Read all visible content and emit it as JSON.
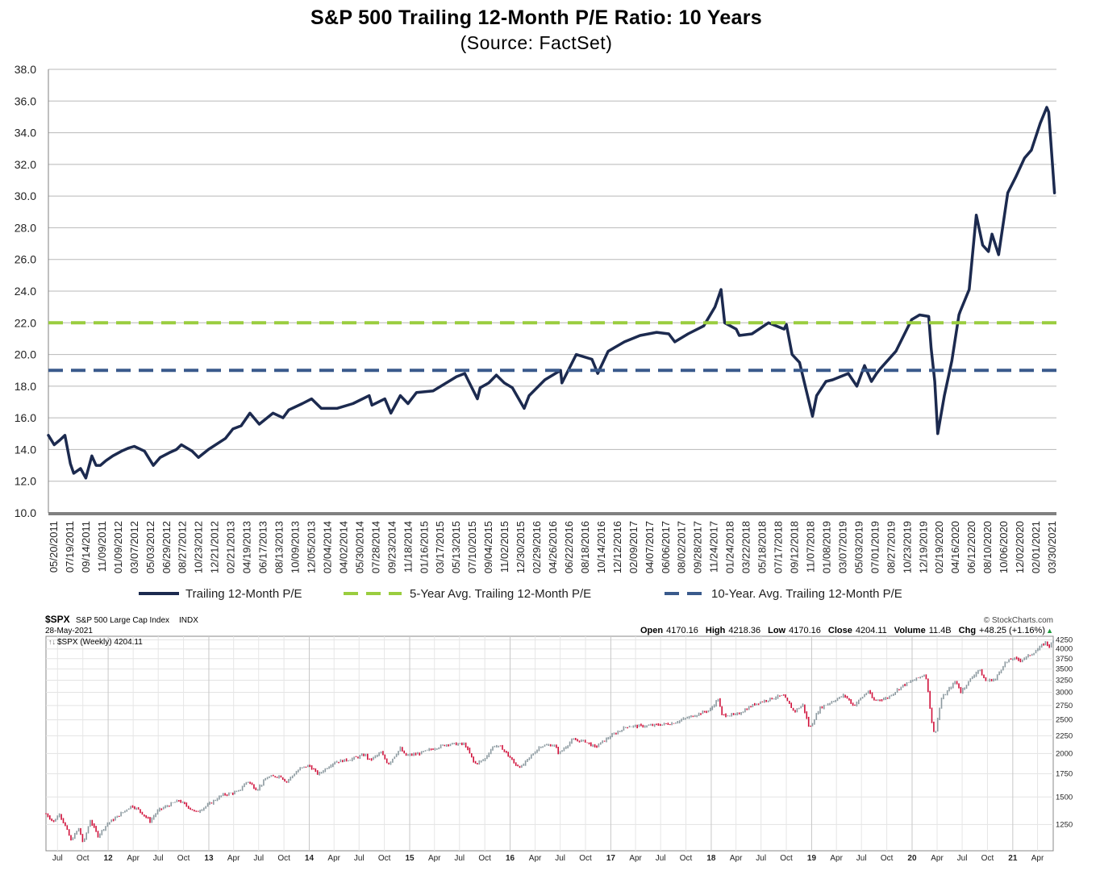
{
  "chart_data": [
    {
      "type": "line",
      "title": "S&P 500 Trailing 12-Month P/E Ratio: 10 Years",
      "subtitle": "(Source: FactSet)",
      "ylim": [
        10,
        38
      ],
      "y_ticks": [
        "10.0",
        "12.0",
        "14.0",
        "16.0",
        "18.0",
        "20.0",
        "22.0",
        "24.0",
        "26.0",
        "28.0",
        "30.0",
        "32.0",
        "34.0",
        "36.0",
        "38.0"
      ],
      "x_ticks": [
        "05/20/2011",
        "07/19/2011",
        "09/14/2011",
        "11/09/2011",
        "01/09/2012",
        "03/07/2012",
        "05/03/2012",
        "06/29/2012",
        "08/27/2012",
        "10/23/2012",
        "12/21/2012",
        "02/21/2013",
        "04/19/2013",
        "06/17/2013",
        "08/13/2013",
        "10/09/2013",
        "12/05/2013",
        "02/04/2014",
        "04/02/2014",
        "05/30/2014",
        "07/28/2014",
        "09/23/2014",
        "11/18/2014",
        "01/16/2015",
        "03/17/2015",
        "05/13/2015",
        "07/10/2015",
        "09/04/2015",
        "11/02/2015",
        "12/30/2015",
        "02/29/2016",
        "04/26/2016",
        "06/22/2016",
        "08/18/2016",
        "10/14/2016",
        "12/12/2016",
        "02/09/2017",
        "04/07/2017",
        "06/06/2017",
        "08/02/2017",
        "09/28/2017",
        "11/24/2017",
        "01/24/2018",
        "03/22/2018",
        "05/18/2018",
        "07/17/2018",
        "09/12/2018",
        "11/07/2018",
        "01/08/2019",
        "03/07/2019",
        "05/03/2019",
        "07/01/2019",
        "08/27/2019",
        "10/23/2019",
        "12/19/2019",
        "02/19/2020",
        "04/16/2020",
        "06/12/2020",
        "08/10/2020",
        "10/06/2020",
        "12/02/2020",
        "02/01/2021",
        "03/30/2021"
      ],
      "x_start": "05/20/2011",
      "x_end": "05/28/2021",
      "series": [
        {
          "name": "Trailing 12-Month P/E",
          "color": "#1c2a4f",
          "dates": [
            "05/20/2011",
            "06/10/2011",
            "07/01/2011",
            "07/19/2011",
            "08/08/2011",
            "08/20/2011",
            "09/14/2011",
            "10/03/2011",
            "10/25/2011",
            "11/09/2011",
            "11/25/2011",
            "12/15/2011",
            "01/09/2012",
            "02/10/2012",
            "03/07/2012",
            "03/27/2012",
            "05/03/2012",
            "06/04/2012",
            "06/29/2012",
            "08/01/2012",
            "08/27/2012",
            "09/14/2012",
            "10/23/2012",
            "11/15/2012",
            "12/21/2012",
            "02/21/2013",
            "03/20/2013",
            "04/19/2013",
            "05/21/2013",
            "06/24/2013",
            "08/13/2013",
            "09/18/2013",
            "10/09/2013",
            "11/27/2013",
            "12/31/2013",
            "02/04/2014",
            "04/02/2014",
            "05/30/2014",
            "07/28/2014",
            "08/07/2014",
            "09/23/2014",
            "10/15/2014",
            "11/18/2014",
            "12/16/2014",
            "01/16/2015",
            "03/17/2015",
            "05/13/2015",
            "06/10/2015",
            "07/10/2015",
            "08/25/2015",
            "09/04/2015",
            "10/05/2015",
            "11/02/2015",
            "12/01/2015",
            "12/30/2015",
            "02/11/2016",
            "02/29/2016",
            "04/26/2016",
            "06/22/2016",
            "06/27/2016",
            "08/18/2016",
            "10/14/2016",
            "11/04/2016",
            "12/12/2016",
            "02/09/2017",
            "04/07/2017",
            "06/06/2017",
            "07/20/2017",
            "08/11/2017",
            "09/28/2017",
            "11/24/2017",
            "01/04/2018",
            "01/26/2018",
            "02/08/2018",
            "03/22/2018",
            "04/02/2018",
            "05/18/2018",
            "07/17/2018",
            "09/12/2018",
            "09/20/2018",
            "10/11/2018",
            "11/07/2018",
            "12/24/2018",
            "01/08/2019",
            "02/11/2019",
            "03/07/2019",
            "05/03/2019",
            "06/03/2019",
            "07/01/2019",
            "07/26/2019",
            "08/14/2019",
            "08/27/2019",
            "10/23/2019",
            "12/19/2019",
            "01/17/2020",
            "02/19/2020",
            "02/28/2020",
            "03/12/2020",
            "03/23/2020",
            "04/16/2020",
            "05/13/2020",
            "06/08/2020",
            "06/12/2020",
            "07/15/2020",
            "08/10/2020",
            "09/02/2020",
            "09/23/2020",
            "10/06/2020",
            "10/30/2020",
            "12/02/2020",
            "12/31/2020",
            "02/01/2021",
            "02/26/2021",
            "03/30/2021",
            "04/23/2021",
            "04/30/2021",
            "05/21/2021"
          ],
          "values": [
            14.9,
            14.3,
            14.6,
            14.9,
            13.1,
            12.5,
            12.8,
            12.2,
            13.6,
            13.0,
            13.0,
            13.3,
            13.6,
            13.9,
            14.1,
            14.2,
            13.9,
            13.0,
            13.5,
            13.8,
            14.0,
            14.3,
            13.9,
            13.5,
            14.0,
            14.7,
            15.3,
            15.5,
            16.3,
            15.6,
            16.3,
            16.0,
            16.5,
            16.9,
            17.2,
            16.6,
            16.6,
            16.9,
            17.4,
            16.8,
            17.2,
            16.3,
            17.4,
            16.9,
            17.6,
            17.7,
            18.3,
            18.6,
            18.8,
            17.2,
            17.9,
            18.2,
            18.7,
            18.2,
            17.9,
            16.6,
            17.4,
            18.4,
            19.0,
            18.2,
            20.0,
            19.7,
            18.8,
            20.2,
            20.8,
            21.2,
            21.4,
            21.3,
            20.8,
            21.3,
            21.8,
            23.0,
            24.1,
            22.0,
            21.6,
            21.2,
            21.3,
            22.0,
            21.6,
            21.9,
            20.0,
            19.5,
            16.1,
            17.4,
            18.3,
            18.4,
            18.8,
            18.0,
            19.3,
            18.3,
            18.8,
            19.1,
            20.2,
            22.2,
            22.5,
            22.4,
            20.4,
            18.3,
            15.0,
            17.4,
            19.6,
            22.5,
            22.7,
            24.1,
            28.8,
            26.9,
            26.5,
            27.6,
            26.3,
            30.2,
            31.2,
            32.4,
            32.9,
            34.6,
            35.6,
            35.3,
            30.2
          ],
          "stroke": "solid"
        },
        {
          "name": "5-Year Avg. Trailing 12-Month P/E",
          "color": "#9acd3f",
          "value": 22.0,
          "stroke": "dashed"
        },
        {
          "name": "10-Year. Avg. Trailing 12-Month P/E",
          "color": "#3a5a8c",
          "value": 19.0,
          "stroke": "dashed"
        }
      ],
      "grid": true,
      "legend": "bottom"
    },
    {
      "type": "line",
      "symbol": "$SPX",
      "name": "S&P 500 Large Cap Index",
      "exchange": "INDX",
      "date": "28-May-2021",
      "watermark": "© StockCharts.com",
      "stats": [
        {
          "label": "Open",
          "value": "4170.16"
        },
        {
          "label": "High",
          "value": "4218.36"
        },
        {
          "label": "Low",
          "value": "4170.16"
        },
        {
          "label": "Close",
          "value": "4204.11"
        },
        {
          "label": "Volume",
          "value": "11.4B"
        },
        {
          "label": "Chg",
          "value": "+48.25 (+1.16%)"
        }
      ],
      "chg_arrow": "▲",
      "series_label": "$SPX (Weekly) 4204.11",
      "series_label_icon": "↑↓",
      "scale": "log",
      "ylim": [
        1050,
        4350
      ],
      "y_ticks": [
        1250,
        1500,
        1750,
        2000,
        2250,
        2500,
        2750,
        3000,
        3250,
        3500,
        3750,
        4000,
        4250
      ],
      "x_ticks": [
        {
          "label": "Jul",
          "date": "2011-07-01",
          "bold": false
        },
        {
          "label": "Oct",
          "date": "2011-10-01",
          "bold": false
        },
        {
          "label": "12",
          "date": "2012-01-01",
          "bold": true
        },
        {
          "label": "Apr",
          "date": "2012-04-01",
          "bold": false
        },
        {
          "label": "Jul",
          "date": "2012-07-01",
          "bold": false
        },
        {
          "label": "Oct",
          "date": "2012-10-01",
          "bold": false
        },
        {
          "label": "13",
          "date": "2013-01-01",
          "bold": true
        },
        {
          "label": "Apr",
          "date": "2013-04-01",
          "bold": false
        },
        {
          "label": "Jul",
          "date": "2013-07-01",
          "bold": false
        },
        {
          "label": "Oct",
          "date": "2013-10-01",
          "bold": false
        },
        {
          "label": "14",
          "date": "2014-01-01",
          "bold": true
        },
        {
          "label": "Apr",
          "date": "2014-04-01",
          "bold": false
        },
        {
          "label": "Jul",
          "date": "2014-07-01",
          "bold": false
        },
        {
          "label": "Oct",
          "date": "2014-10-01",
          "bold": false
        },
        {
          "label": "15",
          "date": "2015-01-01",
          "bold": true
        },
        {
          "label": "Apr",
          "date": "2015-04-01",
          "bold": false
        },
        {
          "label": "Jul",
          "date": "2015-07-01",
          "bold": false
        },
        {
          "label": "Oct",
          "date": "2015-10-01",
          "bold": false
        },
        {
          "label": "16",
          "date": "2016-01-01",
          "bold": true
        },
        {
          "label": "Apr",
          "date": "2016-04-01",
          "bold": false
        },
        {
          "label": "Jul",
          "date": "2016-07-01",
          "bold": false
        },
        {
          "label": "Oct",
          "date": "2016-10-01",
          "bold": false
        },
        {
          "label": "17",
          "date": "2017-01-01",
          "bold": true
        },
        {
          "label": "Apr",
          "date": "2017-04-01",
          "bold": false
        },
        {
          "label": "Jul",
          "date": "2017-07-01",
          "bold": false
        },
        {
          "label": "Oct",
          "date": "2017-10-01",
          "bold": false
        },
        {
          "label": "18",
          "date": "2018-01-01",
          "bold": true
        },
        {
          "label": "Apr",
          "date": "2018-04-01",
          "bold": false
        },
        {
          "label": "Jul",
          "date": "2018-07-01",
          "bold": false
        },
        {
          "label": "Oct",
          "date": "2018-10-01",
          "bold": false
        },
        {
          "label": "19",
          "date": "2019-01-01",
          "bold": true
        },
        {
          "label": "Apr",
          "date": "2019-04-01",
          "bold": false
        },
        {
          "label": "Jul",
          "date": "2019-07-01",
          "bold": false
        },
        {
          "label": "Oct",
          "date": "2019-10-01",
          "bold": false
        },
        {
          "label": "20",
          "date": "2020-01-01",
          "bold": true
        },
        {
          "label": "Apr",
          "date": "2020-04-01",
          "bold": false
        },
        {
          "label": "Jul",
          "date": "2020-07-01",
          "bold": false
        },
        {
          "label": "Oct",
          "date": "2020-10-01",
          "bold": false
        },
        {
          "label": "21",
          "date": "2021-01-01",
          "bold": true
        },
        {
          "label": "Apr",
          "date": "2021-04-01",
          "bold": false
        }
      ],
      "x_start": "2011-05-20",
      "x_end": "2021-05-28",
      "up_color": "#8c9aa0",
      "down_color": "#d0103a",
      "dates": [
        "2011-05-20",
        "2011-06-17",
        "2011-07-08",
        "2011-08-05",
        "2011-08-19",
        "2011-09-16",
        "2011-10-03",
        "2011-10-28",
        "2011-11-25",
        "2011-12-30",
        "2012-02-01",
        "2012-03-26",
        "2012-04-20",
        "2012-06-01",
        "2012-07-02",
        "2012-09-14",
        "2012-11-15",
        "2012-12-31",
        "2013-02-19",
        "2013-04-18",
        "2013-05-21",
        "2013-06-24",
        "2013-08-02",
        "2013-09-18",
        "2013-10-09",
        "2013-11-27",
        "2013-12-31",
        "2014-02-03",
        "2014-04-02",
        "2014-05-30",
        "2014-07-24",
        "2014-08-07",
        "2014-09-19",
        "2014-10-15",
        "2014-11-28",
        "2014-12-16",
        "2015-01-30",
        "2015-03-10",
        "2015-05-20",
        "2015-07-20",
        "2015-08-25",
        "2015-09-29",
        "2015-11-03",
        "2015-12-01",
        "2016-01-20",
        "2016-02-11",
        "2016-04-20",
        "2016-06-08",
        "2016-06-27",
        "2016-08-15",
        "2016-09-30",
        "2016-11-04",
        "2016-12-30",
        "2017-03-01",
        "2017-05-15",
        "2017-08-11",
        "2017-10-31",
        "2017-12-29",
        "2018-01-26",
        "2018-02-08",
        "2018-04-02",
        "2018-06-12",
        "2018-08-29",
        "2018-09-20",
        "2018-10-29",
        "2018-11-30",
        "2018-12-24",
        "2019-01-31",
        "2019-04-30",
        "2019-06-03",
        "2019-07-26",
        "2019-08-14",
        "2019-10-02",
        "2019-11-29",
        "2019-12-31",
        "2020-02-19",
        "2020-03-12",
        "2020-03-23",
        "2020-04-17",
        "2020-06-08",
        "2020-06-26",
        "2020-08-31",
        "2020-09-23",
        "2020-10-30",
        "2020-11-30",
        "2020-12-31",
        "2021-01-29",
        "2021-02-26",
        "2021-03-31",
        "2021-04-30",
        "2021-05-12",
        "2021-05-28"
      ],
      "values": [
        1340,
        1272,
        1344,
        1199,
        1123,
        1216,
        1099,
        1285,
        1159,
        1258,
        1312,
        1416,
        1378,
        1278,
        1374,
        1465,
        1353,
        1426,
        1519,
        1552,
        1669,
        1573,
        1709,
        1725,
        1656,
        1807,
        1848,
        1741,
        1890,
        1924,
        1987,
        1909,
        2011,
        1862,
        2067,
        1972,
        1995,
        2044,
        2131,
        2128,
        1867,
        1920,
        2110,
        2080,
        1859,
        1829,
        2102,
        2119,
        2000,
        2190,
        2168,
        2085,
        2239,
        2395,
        2402,
        2441,
        2575,
        2674,
        2873,
        2581,
        2581,
        2786,
        2914,
        2931,
        2641,
        2760,
        2351,
        2704,
        2945,
        2744,
        3025,
        2840,
        2887,
        3141,
        3231,
        3386,
        2480,
        2237,
        2875,
        3232,
        3009,
        3500,
        3237,
        3270,
        3621,
        3756,
        3714,
        3811,
        3973,
        4181,
        4063,
        4204
      ]
    }
  ]
}
